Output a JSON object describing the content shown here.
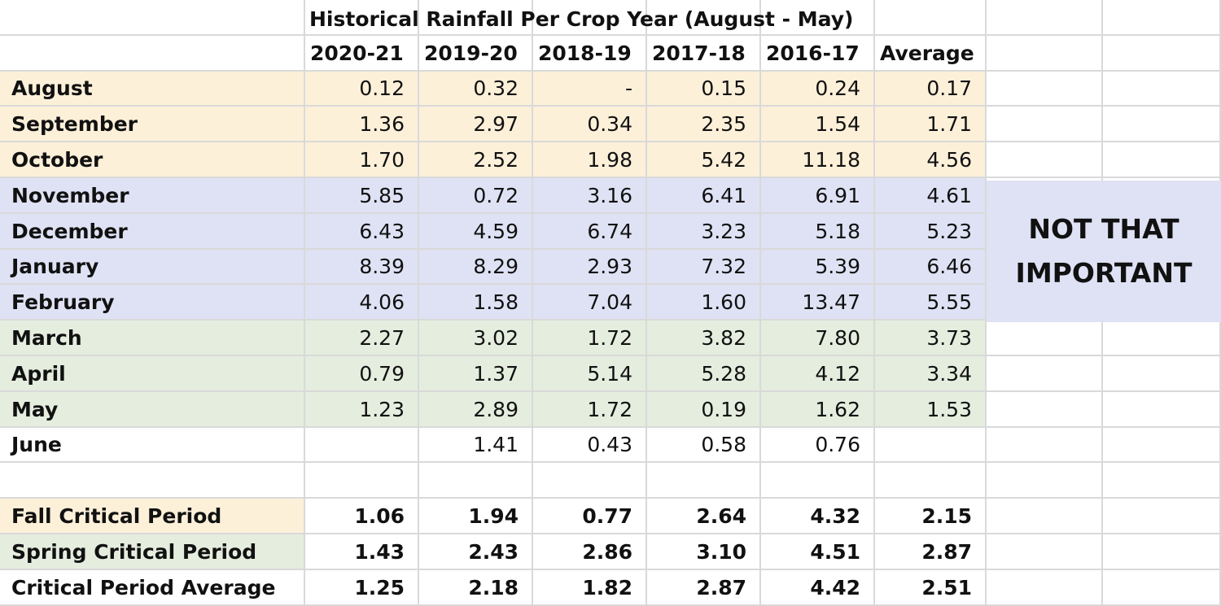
{
  "title": "Historical Rainfall Per Crop Year (August - May)",
  "headers": [
    "2020-21",
    "2019-20",
    "2018-19",
    "2017-18",
    "2016-17",
    "Average"
  ],
  "colors": {
    "fall": "#fdf0d9",
    "winter": "#dfe2f4",
    "spring": "#e5eddf",
    "grid": "#d9d9d9"
  },
  "rows": [
    {
      "label": "August",
      "band": "fall",
      "values": [
        "0.12",
        "0.32",
        "-",
        "0.15",
        "0.24",
        "0.17"
      ]
    },
    {
      "label": "September",
      "band": "fall",
      "values": [
        "1.36",
        "2.97",
        "0.34",
        "2.35",
        "1.54",
        "1.71"
      ]
    },
    {
      "label": "October",
      "band": "fall",
      "values": [
        "1.70",
        "2.52",
        "1.98",
        "5.42",
        "11.18",
        "4.56"
      ]
    },
    {
      "label": "November",
      "band": "winter",
      "values": [
        "5.85",
        "0.72",
        "3.16",
        "6.41",
        "6.91",
        "4.61"
      ]
    },
    {
      "label": "December",
      "band": "winter",
      "values": [
        "6.43",
        "4.59",
        "6.74",
        "3.23",
        "5.18",
        "5.23"
      ]
    },
    {
      "label": "January",
      "band": "winter",
      "values": [
        "8.39",
        "8.29",
        "2.93",
        "7.32",
        "5.39",
        "6.46"
      ]
    },
    {
      "label": "February",
      "band": "winter",
      "values": [
        "4.06",
        "1.58",
        "7.04",
        "1.60",
        "13.47",
        "5.55"
      ]
    },
    {
      "label": "March",
      "band": "spring",
      "values": [
        "2.27",
        "3.02",
        "1.72",
        "3.82",
        "7.80",
        "3.73"
      ]
    },
    {
      "label": "April",
      "band": "spring",
      "values": [
        "0.79",
        "1.37",
        "5.14",
        "5.28",
        "4.12",
        "3.34"
      ]
    },
    {
      "label": "May",
      "band": "spring",
      "values": [
        "1.23",
        "2.89",
        "1.72",
        "0.19",
        "1.62",
        "1.53"
      ]
    },
    {
      "label": "June",
      "band": "none",
      "values": [
        "",
        "1.41",
        "0.43",
        "0.58",
        "0.76",
        ""
      ]
    }
  ],
  "summary": [
    {
      "label": "Fall Critical Period",
      "band": "fall",
      "values": [
        "1.06",
        "1.94",
        "0.77",
        "2.64",
        "4.32",
        "2.15"
      ]
    },
    {
      "label": "Spring Critical Period",
      "band": "spring",
      "values": [
        "1.43",
        "2.43",
        "2.86",
        "3.10",
        "4.51",
        "2.87"
      ]
    },
    {
      "label": "Critical Period Average",
      "band": "none",
      "values": [
        "1.25",
        "2.18",
        "1.82",
        "2.87",
        "4.42",
        "2.51"
      ]
    }
  ],
  "note": {
    "line1": "NOT THAT",
    "line2": "IMPORTANT"
  }
}
